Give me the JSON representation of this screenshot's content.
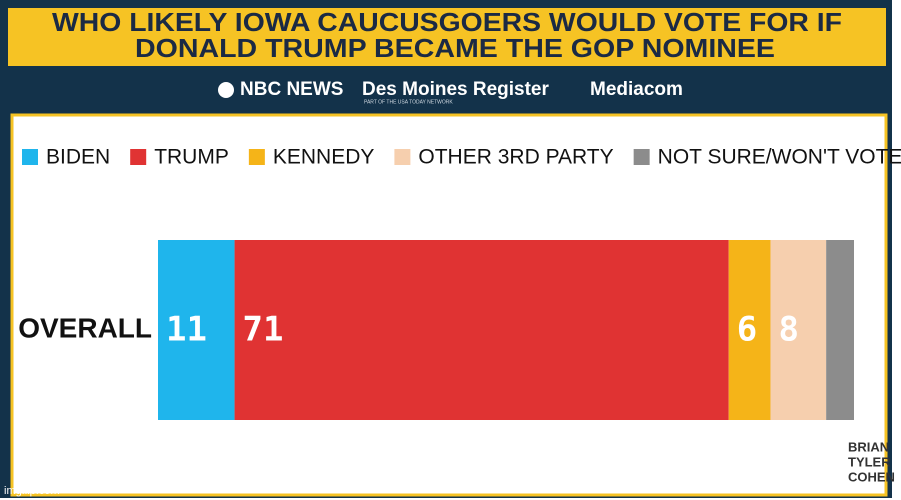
{
  "chart_data": {
    "type": "stacked-bar-horizontal",
    "title": [
      "WHO LIKELY IOWA CAUCUSGOERS WOULD VOTE FOR IF",
      "DONALD TRUMP BECAME THE GOP NOMINEE"
    ],
    "sources": [
      "NBC NEWS",
      "Des Moines Register",
      "PART OF THE USA TODAY NETWORK",
      "Mediacom"
    ],
    "watermark": [
      "BRIAN",
      "TYLER",
      "COHEN"
    ],
    "credit": "imgflip.com",
    "categories": [
      "OVERALL"
    ],
    "xlim": [
      0,
      100
    ],
    "series": [
      {
        "name": "BIDEN",
        "color": "#1fb5ec",
        "values": [
          11
        ]
      },
      {
        "name": "TRUMP",
        "color": "#e03333",
        "values": [
          71
        ]
      },
      {
        "name": "KENNEDY",
        "color": "#f5b418",
        "values": [
          6
        ]
      },
      {
        "name": "OTHER 3RD PARTY",
        "color": "#f6cfae",
        "values": [
          8
        ]
      },
      {
        "name": "NOT SURE/WON'T VOTE",
        "color": "#8c8c8c",
        "values": [
          4
        ],
        "labeled": false
      }
    ]
  }
}
